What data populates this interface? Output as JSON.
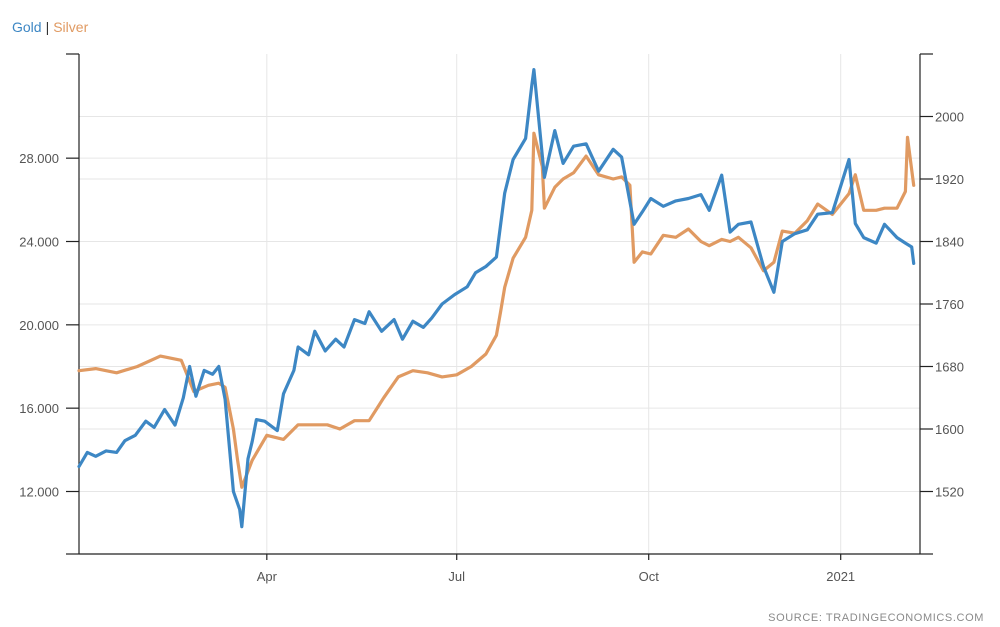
{
  "legend": {
    "gold_label": "Gold",
    "separator": "|",
    "silver_label": "Silver"
  },
  "source_text": "SOURCE: TRADINGECONOMICS.COM",
  "colors": {
    "gold": "#3d87c4",
    "silver": "#e09a62",
    "grid": "#e6e6e6",
    "axis": "#222222"
  },
  "chart_data": {
    "type": "line",
    "title": "",
    "xlabel": "",
    "grid": true,
    "legend_placement": "top-left",
    "x_tick_labels": [
      {
        "date": "2020-04-01",
        "label": "Apr"
      },
      {
        "date": "2020-07-01",
        "label": "Jul"
      },
      {
        "date": "2020-10-01",
        "label": "Oct"
      },
      {
        "date": "2021-01-01",
        "label": "2021"
      }
    ],
    "xlim": [
      "2020-01-02",
      "2021-02-08"
    ],
    "left_axis": {
      "series": "Silver",
      "ylim": [
        9000,
        33000
      ],
      "ticks": [
        12000,
        16000,
        20000,
        24000,
        28000
      ],
      "tick_labels": [
        "12.000",
        "16.000",
        "20.000",
        "24.000",
        "28.000"
      ]
    },
    "right_axis": {
      "series": "Gold",
      "ylim": [
        1440,
        2080
      ],
      "ticks": [
        1520,
        1600,
        1680,
        1760,
        1840,
        1920,
        2000
      ],
      "tick_labels": [
        "1520",
        "1600",
        "1680",
        "1760",
        "1840",
        "1920",
        "2000"
      ]
    },
    "series": [
      {
        "name": "Gold",
        "axis": "right",
        "x": [
          "2020-01-02",
          "2020-01-06",
          "2020-01-10",
          "2020-01-15",
          "2020-01-20",
          "2020-01-24",
          "2020-01-29",
          "2020-02-03",
          "2020-02-07",
          "2020-02-12",
          "2020-02-17",
          "2020-02-21",
          "2020-02-24",
          "2020-02-27",
          "2020-03-02",
          "2020-03-06",
          "2020-03-09",
          "2020-03-12",
          "2020-03-16",
          "2020-03-19",
          "2020-03-20",
          "2020-03-23",
          "2020-03-25",
          "2020-03-27",
          "2020-03-31",
          "2020-04-06",
          "2020-04-09",
          "2020-04-14",
          "2020-04-16",
          "2020-04-21",
          "2020-04-24",
          "2020-04-29",
          "2020-05-04",
          "2020-05-08",
          "2020-05-13",
          "2020-05-18",
          "2020-05-20",
          "2020-05-26",
          "2020-06-01",
          "2020-06-05",
          "2020-06-10",
          "2020-06-15",
          "2020-06-19",
          "2020-06-24",
          "2020-06-30",
          "2020-07-06",
          "2020-07-10",
          "2020-07-15",
          "2020-07-20",
          "2020-07-24",
          "2020-07-28",
          "2020-08-03",
          "2020-08-06",
          "2020-08-07",
          "2020-08-11",
          "2020-08-12",
          "2020-08-17",
          "2020-08-21",
          "2020-08-26",
          "2020-09-01",
          "2020-09-07",
          "2020-09-14",
          "2020-09-18",
          "2020-09-24",
          "2020-09-28",
          "2020-10-02",
          "2020-10-08",
          "2020-10-14",
          "2020-10-20",
          "2020-10-26",
          "2020-10-30",
          "2020-11-05",
          "2020-11-09",
          "2020-11-13",
          "2020-11-19",
          "2020-11-25",
          "2020-11-30",
          "2020-12-04",
          "2020-12-10",
          "2020-12-16",
          "2020-12-21",
          "2020-12-28",
          "2021-01-05",
          "2021-01-08",
          "2021-01-12",
          "2021-01-18",
          "2021-01-22",
          "2021-01-28",
          "2021-02-01",
          "2021-02-04",
          "2021-02-05"
        ],
        "values": [
          1552,
          1570,
          1565,
          1572,
          1570,
          1585,
          1592,
          1610,
          1602,
          1625,
          1605,
          1640,
          1680,
          1642,
          1675,
          1670,
          1680,
          1638,
          1520,
          1497,
          1475,
          1562,
          1584,
          1612,
          1610,
          1598,
          1645,
          1675,
          1705,
          1695,
          1725,
          1700,
          1715,
          1705,
          1740,
          1735,
          1750,
          1725,
          1740,
          1715,
          1738,
          1730,
          1742,
          1760,
          1772,
          1782,
          1800,
          1808,
          1820,
          1902,
          1945,
          1972,
          2040,
          2060,
          1950,
          1922,
          1982,
          1940,
          1962,
          1965,
          1930,
          1958,
          1948,
          1862,
          1878,
          1895,
          1885,
          1892,
          1895,
          1900,
          1880,
          1925,
          1852,
          1862,
          1865,
          1808,
          1775,
          1840,
          1850,
          1855,
          1875,
          1877,
          1945,
          1863,
          1845,
          1838,
          1862,
          1845,
          1838,
          1833,
          1812
        ]
      },
      {
        "name": "Silver",
        "axis": "left",
        "x": [
          "2020-01-02",
          "2020-01-10",
          "2020-01-20",
          "2020-01-30",
          "2020-02-10",
          "2020-02-20",
          "2020-02-26",
          "2020-03-04",
          "2020-03-09",
          "2020-03-12",
          "2020-03-16",
          "2020-03-18",
          "2020-03-20",
          "2020-03-25",
          "2020-04-01",
          "2020-04-09",
          "2020-04-16",
          "2020-04-23",
          "2020-04-30",
          "2020-05-06",
          "2020-05-13",
          "2020-05-20",
          "2020-05-27",
          "2020-06-03",
          "2020-06-10",
          "2020-06-17",
          "2020-06-24",
          "2020-07-01",
          "2020-07-08",
          "2020-07-15",
          "2020-07-20",
          "2020-07-22",
          "2020-07-24",
          "2020-07-28",
          "2020-08-03",
          "2020-08-06",
          "2020-08-07",
          "2020-08-11",
          "2020-08-12",
          "2020-08-17",
          "2020-08-21",
          "2020-08-26",
          "2020-09-01",
          "2020-09-07",
          "2020-09-14",
          "2020-09-18",
          "2020-09-22",
          "2020-09-24",
          "2020-09-28",
          "2020-10-02",
          "2020-10-08",
          "2020-10-14",
          "2020-10-20",
          "2020-10-26",
          "2020-10-30",
          "2020-11-05",
          "2020-11-09",
          "2020-11-13",
          "2020-11-19",
          "2020-11-25",
          "2020-11-30",
          "2020-12-04",
          "2020-12-10",
          "2020-12-16",
          "2020-12-21",
          "2020-12-28",
          "2021-01-05",
          "2021-01-08",
          "2021-01-12",
          "2021-01-18",
          "2021-01-22",
          "2021-01-28",
          "2021-02-01",
          "2021-02-02",
          "2021-02-05"
        ],
        "values": [
          17800,
          17900,
          17700,
          18000,
          18500,
          18300,
          16800,
          17100,
          17200,
          17000,
          15000,
          13500,
          12200,
          13500,
          14700,
          14500,
          15200,
          15200,
          15200,
          15000,
          15400,
          15400,
          16500,
          17500,
          17800,
          17700,
          17500,
          17600,
          18000,
          18600,
          19500,
          20600,
          21800,
          23200,
          24200,
          25500,
          29200,
          27600,
          25600,
          26600,
          27000,
          27300,
          28100,
          27200,
          27000,
          27100,
          26700,
          23000,
          23500,
          23400,
          24300,
          24200,
          24600,
          24000,
          23800,
          24100,
          24000,
          24200,
          23700,
          22600,
          23000,
          24500,
          24400,
          25000,
          25800,
          25300,
          26300,
          27200,
          25500,
          25500,
          25600,
          25600,
          26400,
          29000,
          26700
        ]
      }
    ]
  }
}
